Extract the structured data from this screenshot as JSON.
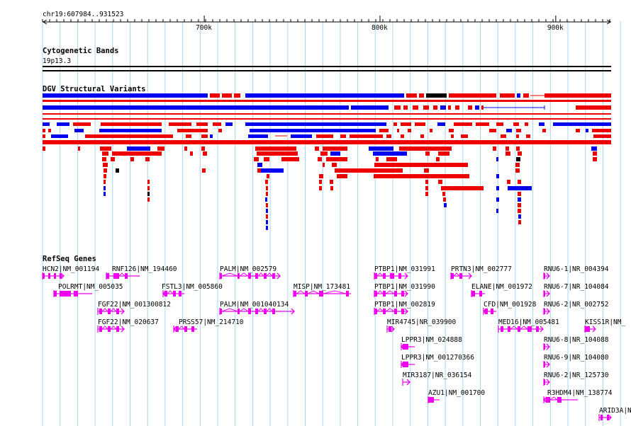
{
  "ruler": {
    "range_label": "chr19:607984..931523",
    "ticks": [
      {
        "pos": 700000,
        "label": "700k"
      },
      {
        "pos": 800000,
        "label": "800k"
      },
      {
        "pos": 900000,
        "label": "900k"
      }
    ]
  },
  "tracks": {
    "cytoband_title": "Cytogenetic Bands",
    "cytoband_name": "19p13.3",
    "dgv_title": "DGV Structural Variants",
    "refseq_title": "RefSeq Genes"
  },
  "colors": {
    "gain": "#0000ee",
    "loss": "#ee0000",
    "complex": "#000000",
    "gene": "#ee00ee",
    "grid": "#aad4ee"
  },
  "genes": [
    {
      "label": "HCN2|NM_001194"
    },
    {
      "label": "RNF126|NM_194460"
    },
    {
      "label": "PALM|NM_002579"
    },
    {
      "label": "PTBP1|NM_031991"
    },
    {
      "label": "PRTN3|NM_002777"
    },
    {
      "label": "RNU6-1|NR_004394"
    },
    {
      "label": "POLRMT|NM_005035"
    },
    {
      "label": "FSTL3|NM_005860"
    },
    {
      "label": "MISP|NM_173481"
    },
    {
      "label": "PTBP1|NM_031990"
    },
    {
      "label": "ELANE|NM_001972"
    },
    {
      "label": "RNU6-7|NR_104084"
    },
    {
      "label": "FGF22|NM_001300812"
    },
    {
      "label": "PALM|NM_001040134"
    },
    {
      "label": "PTBP1|NM_002819"
    },
    {
      "label": "CFD|NM_001928"
    },
    {
      "label": "RNU6-2|NR_002752"
    },
    {
      "label": "FGF22|NM_020637"
    },
    {
      "label": "PRSS57|NM_214710"
    },
    {
      "label": "MIR4745|NR_039900"
    },
    {
      "label": "MED16|NM_005481"
    },
    {
      "label": "KISS1R|NM_"
    },
    {
      "label": "LPPR3|NM_024888"
    },
    {
      "label": "RNU6-8|NR_104088"
    },
    {
      "label": "LPPR3|NM_001270366"
    },
    {
      "label": "RNU6-9|NR_104080"
    },
    {
      "label": "MIR3187|NR_036154"
    },
    {
      "label": "RNU6-2|NR_125730"
    },
    {
      "label": "AZU1|NM_001700"
    },
    {
      "label": "R3HDM4|NM_138774"
    },
    {
      "label": "ARID3A|NM_"
    }
  ]
}
